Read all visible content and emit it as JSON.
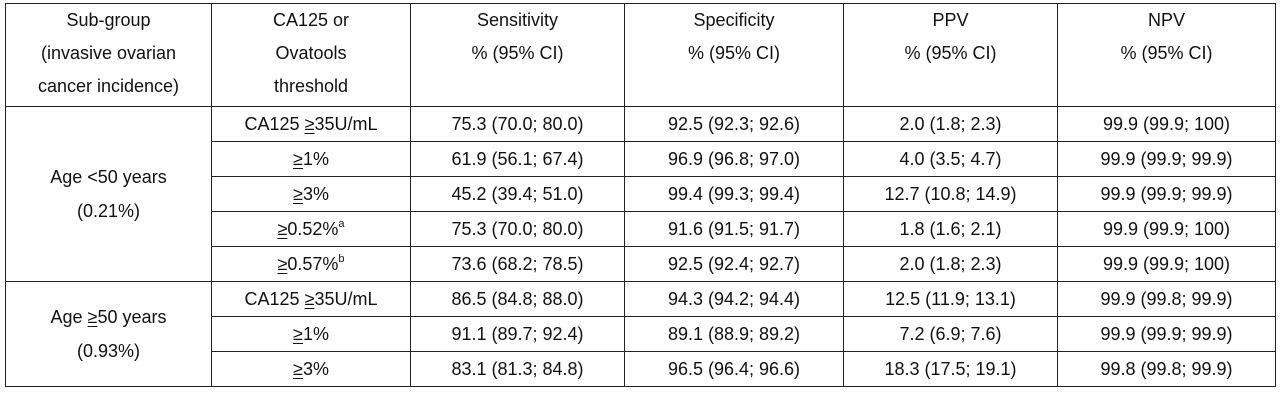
{
  "headers": [
    {
      "lines": [
        "Sub-group",
        "(invasive ovarian",
        "cancer incidence)"
      ]
    },
    {
      "lines": [
        "CA125 or",
        "Ovatools",
        "threshold"
      ]
    },
    {
      "lines": [
        "Sensitivity",
        "% (95% CI)"
      ]
    },
    {
      "lines": [
        "Specificity",
        "% (95% CI)"
      ]
    },
    {
      "lines": [
        "PPV",
        "% (95% CI)"
      ]
    },
    {
      "lines": [
        "NPV",
        "% (95% CI)"
      ]
    }
  ],
  "groups": [
    {
      "label_lines": [
        "Age <50 years",
        "(0.21%)"
      ],
      "rows": [
        {
          "prefix": "CA125 ",
          "sym": "≥",
          "rest": "35U/mL",
          "sup": "",
          "sens": "75.3 (70.0; 80.0)",
          "spec": "92.5 (92.3; 92.6)",
          "ppv": "2.0 (1.8; 2.3)",
          "npv": "99.9 (99.9; 100)"
        },
        {
          "prefix": "",
          "sym": "≥",
          "rest": "1%",
          "sup": "",
          "sens": "61.9 (56.1; 67.4)",
          "spec": "96.9 (96.8; 97.0)",
          "ppv": "4.0 (3.5; 4.7)",
          "npv": "99.9 (99.9; 99.9)"
        },
        {
          "prefix": "",
          "sym": "≥",
          "rest": "3%",
          "sup": "",
          "sens": "45.2 (39.4; 51.0)",
          "spec": "99.4 (99.3; 99.4)",
          "ppv": "12.7 (10.8; 14.9)",
          "npv": "99.9 (99.9; 99.9)"
        },
        {
          "prefix": "",
          "sym": "≥",
          "rest": "0.52%",
          "sup": "a",
          "sens": "75.3 (70.0; 80.0)",
          "spec": "91.6 (91.5; 91.7)",
          "ppv": "1.8 (1.6; 2.1)",
          "npv": "99.9 (99.9; 100)"
        },
        {
          "prefix": "",
          "sym": "≥",
          "rest": "0.57%",
          "sup": "b",
          "sens": "73.6 (68.2; 78.5)",
          "spec": "92.5 (92.4; 92.7)",
          "ppv": "2.0 (1.8; 2.3)",
          "npv": "99.9 (99.9; 100)"
        }
      ]
    },
    {
      "label_lines": [
        "Age ≥50 years",
        "(0.93%)"
      ],
      "label_sym_underlined": true,
      "rows": [
        {
          "prefix": "CA125 ",
          "sym": "≥",
          "rest": "35U/mL",
          "sup": "",
          "sens": "86.5 (84.8; 88.0)",
          "spec": "94.3 (94.2; 94.4)",
          "ppv": "12.5 (11.9; 13.1)",
          "npv": "99.9 (99.8; 99.9)"
        },
        {
          "prefix": "",
          "sym": "≥",
          "rest": "1%",
          "sup": "",
          "sens": "91.1 (89.7; 92.4)",
          "spec": "89.1 (88.9; 89.2)",
          "ppv": "7.2 (6.9; 7.6)",
          "npv": "99.9 (99.9; 99.9)"
        },
        {
          "prefix": "",
          "sym": "≥",
          "rest": "3%",
          "sup": "",
          "sens": "83.1 (81.3; 84.8)",
          "spec": "96.5 (96.4; 96.6)",
          "ppv": "18.3 (17.5; 19.1)",
          "npv": "99.8 (99.8; 99.9)"
        }
      ]
    }
  ]
}
